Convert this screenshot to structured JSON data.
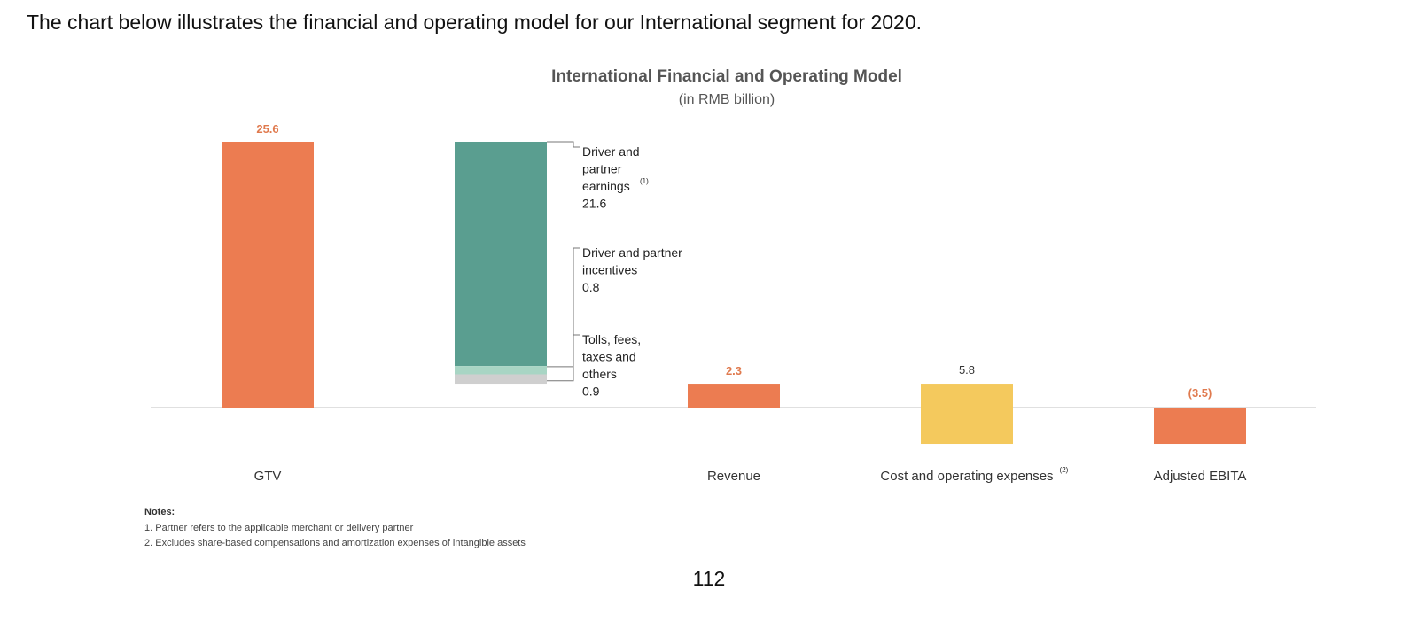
{
  "intro_text": "The chart below illustrates the financial and operating model for our International segment for 2020.",
  "page_number": "112",
  "colors": {
    "orange": "#ec7c51",
    "teal": "#5a9e90",
    "light_teal": "#a8d5c4",
    "gray": "#cfcfcf",
    "yellow": "#f4c95d",
    "axis": "#e0e0e0"
  },
  "chart_data": {
    "type": "bar",
    "title": "International Financial and Operating Model",
    "subtitle": "(in RMB billion)",
    "unit": "RMB billion",
    "categories": [
      "GTV",
      "",
      "Revenue",
      "Cost and operating expenses",
      "Adjusted EBITA"
    ],
    "category_superscripts": [
      "",
      "",
      "",
      "(2)",
      ""
    ],
    "bars": [
      {
        "category": "GTV",
        "value": 25.6,
        "label": "25.6",
        "color": "orange"
      },
      {
        "category": "",
        "value": 23.3,
        "color": "teal",
        "components": [
          {
            "name": "Driver and partner earnings",
            "value": 21.6,
            "label_lines": [
              "Driver and",
              "partner",
              "earnings",
              "21.6"
            ],
            "superscript": "(1)",
            "color": "teal"
          },
          {
            "name": "Driver and partner incentives",
            "value": 0.8,
            "label_lines": [
              "Driver and partner",
              "incentives",
              "0.8"
            ],
            "color": "light_teal"
          },
          {
            "name": "Tolls, fees, taxes and others",
            "value": 0.9,
            "label_lines": [
              "Tolls, fees,",
              "taxes and",
              "others",
              "0.9"
            ],
            "color": "gray"
          }
        ]
      },
      {
        "category": "Revenue",
        "value": 2.3,
        "label": "2.3",
        "color": "orange"
      },
      {
        "category": "Cost and operating expenses",
        "value": 5.8,
        "label": "5.8",
        "color": "yellow"
      },
      {
        "category": "Adjusted EBITA",
        "value": -3.5,
        "label": "(3.5)",
        "color": "orange"
      }
    ],
    "notes_heading": "Notes:",
    "notes": [
      "1. Partner refers to the applicable merchant or delivery partner",
      "2. Excludes share-based compensations and amortization expenses of intangible assets"
    ]
  }
}
